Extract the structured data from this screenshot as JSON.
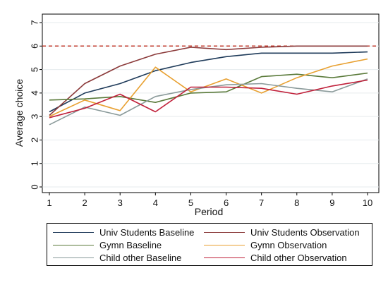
{
  "chart_data": {
    "type": "line",
    "ylabel": "Average choice",
    "xlabel": "Period",
    "x": [
      1,
      2,
      3,
      4,
      5,
      6,
      7,
      8,
      9,
      10
    ],
    "xticks": [
      "1",
      "2",
      "3",
      "4",
      "5",
      "6",
      "7",
      "8",
      "9",
      "10"
    ],
    "yticks": [
      "0",
      "1",
      "2",
      "3",
      "4",
      "5",
      "6",
      "7"
    ],
    "xlim": [
      1,
      10
    ],
    "ylim": [
      0,
      7
    ],
    "reference_line": {
      "y": 6,
      "color": "#c0392b",
      "style": "dashed"
    },
    "grid": "horizontal",
    "legend_position": "bottom",
    "series": [
      {
        "name": "Univ Students Baseline",
        "color": "#1f3b5a",
        "values": [
          3.2,
          4.0,
          4.4,
          4.95,
          5.3,
          5.55,
          5.7,
          5.7,
          5.7,
          5.75
        ]
      },
      {
        "name": "Univ Students Observation",
        "color": "#8b3a3a",
        "values": [
          3.05,
          4.4,
          5.15,
          5.65,
          5.95,
          5.85,
          5.95,
          6.0,
          6.0,
          6.0
        ]
      },
      {
        "name": "Gymn Baseline",
        "color": "#5a7a3a",
        "values": [
          3.7,
          3.75,
          3.85,
          3.6,
          4.0,
          4.05,
          4.7,
          4.8,
          4.65,
          4.85
        ]
      },
      {
        "name": "Gymn Observation",
        "color": "#e8a030",
        "values": [
          3.0,
          3.7,
          3.25,
          5.1,
          4.05,
          4.6,
          4.0,
          4.65,
          5.15,
          5.45
        ]
      },
      {
        "name": "Child other Baseline",
        "color": "#8a9a9a",
        "values": [
          2.65,
          3.4,
          3.05,
          3.85,
          4.15,
          4.35,
          4.4,
          4.2,
          4.05,
          4.6
        ]
      },
      {
        "name": "Child other Observation",
        "color": "#c0203a",
        "values": [
          2.95,
          3.35,
          3.95,
          3.2,
          4.25,
          4.25,
          4.2,
          3.95,
          4.3,
          4.55
        ]
      }
    ]
  }
}
